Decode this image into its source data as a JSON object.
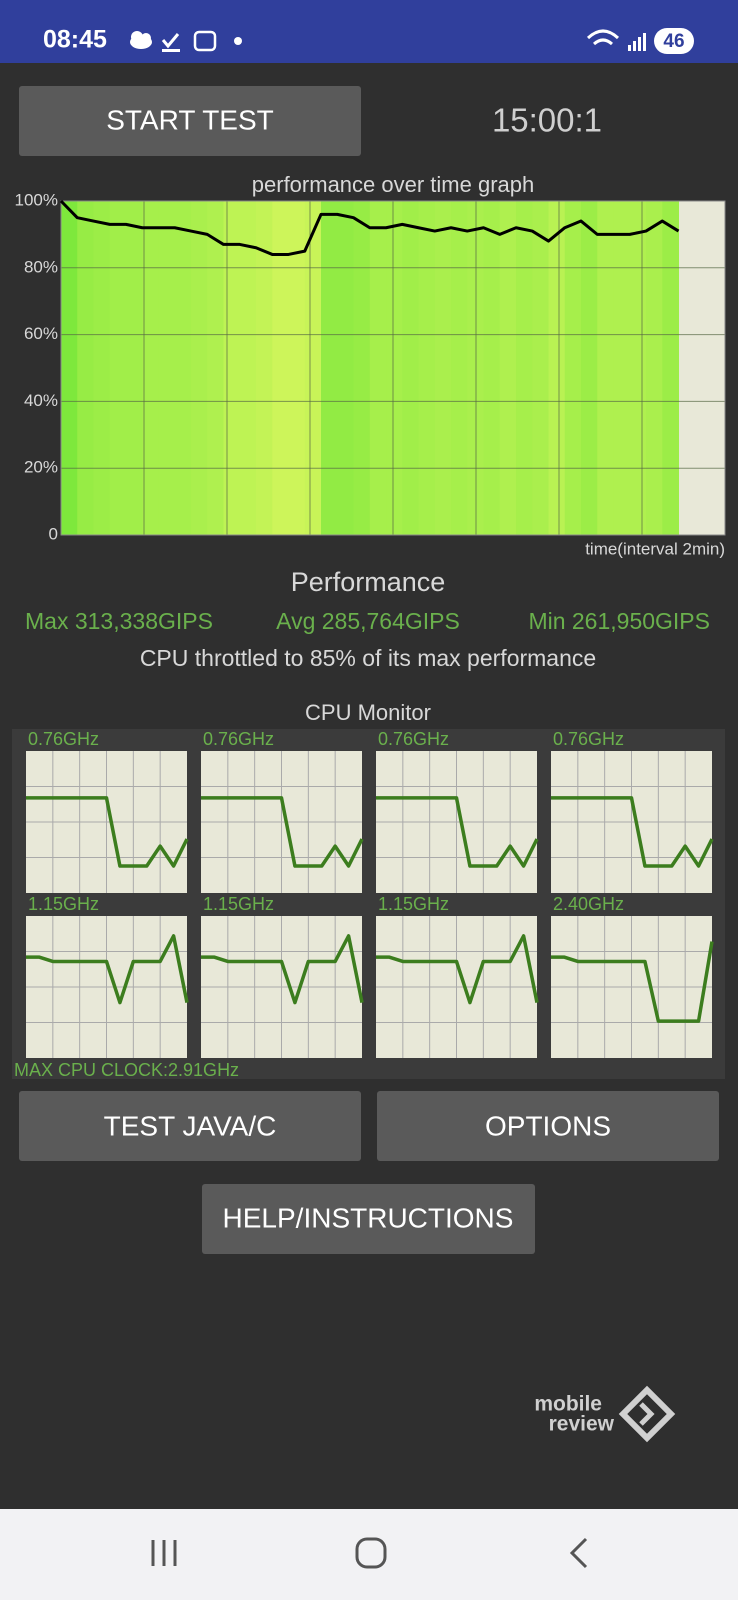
{
  "status_bar": {
    "time": "08:45",
    "battery": "46"
  },
  "buttons": {
    "start": "START TEST",
    "java": "TEST JAVA/C",
    "options": "OPTIONS",
    "help": "HELP/INSTRUCTIONS"
  },
  "timer": "15:00:1",
  "chart_data": {
    "type": "line",
    "title": "performance over time graph",
    "x_label": "time(interval 2min)",
    "ylim": [
      0,
      100
    ],
    "yticks": [
      {
        "value": 100,
        "label": "100%"
      },
      {
        "value": 80,
        "label": "80%"
      },
      {
        "value": 60,
        "label": "60%"
      },
      {
        "value": 40,
        "label": "40%"
      },
      {
        "value": 20,
        "label": "20%"
      },
      0
    ],
    "values": [
      100,
      95,
      94,
      93,
      93,
      92,
      92,
      92,
      91,
      90,
      87,
      87,
      86,
      84,
      84,
      85,
      96,
      96,
      95,
      92,
      92,
      93,
      92,
      91,
      92,
      91,
      92,
      90,
      92,
      91,
      88,
      92,
      94,
      90,
      90,
      90,
      91,
      94,
      91
    ],
    "color": "#000000",
    "background": "#e8e8d8",
    "grid": true
  },
  "performance": {
    "title": "Performance",
    "max": "Max 313,338GIPS",
    "avg": "Avg 285,764GIPS",
    "min": "Min 261,950GIPS",
    "summary": "CPU throttled to 85% of its max performance"
  },
  "cpu_monitor": {
    "title": "CPU Monitor",
    "max_clock": "MAX CPU CLOCK:2.91GHz",
    "ylim": [
      0,
      100
    ],
    "color": "#3c7d1e",
    "cores": [
      {
        "label": "0.76GHz",
        "values": [
          67,
          67,
          67,
          67,
          67,
          67,
          67,
          19,
          19,
          19,
          33,
          19,
          38
        ]
      },
      {
        "label": "0.76GHz",
        "values": [
          67,
          67,
          67,
          67,
          67,
          67,
          67,
          19,
          19,
          19,
          33,
          19,
          38
        ]
      },
      {
        "label": "0.76GHz",
        "values": [
          67,
          67,
          67,
          67,
          67,
          67,
          67,
          19,
          19,
          19,
          33,
          19,
          38
        ]
      },
      {
        "label": "0.76GHz",
        "values": [
          67,
          67,
          67,
          67,
          67,
          67,
          67,
          19,
          19,
          19,
          33,
          19,
          38
        ]
      },
      {
        "label": "1.15GHz",
        "values": [
          71,
          71,
          68,
          68,
          68,
          68,
          68,
          39,
          68,
          68,
          68,
          86,
          39
        ]
      },
      {
        "label": "1.15GHz",
        "values": [
          71,
          71,
          68,
          68,
          68,
          68,
          68,
          39,
          68,
          68,
          68,
          86,
          39
        ]
      },
      {
        "label": "1.15GHz",
        "values": [
          71,
          71,
          68,
          68,
          68,
          68,
          68,
          39,
          68,
          68,
          68,
          86,
          39
        ]
      },
      {
        "label": "2.40GHz",
        "values": [
          71,
          71,
          68,
          68,
          68,
          68,
          68,
          68,
          26,
          26,
          26,
          26,
          82
        ]
      }
    ]
  },
  "watermark": [
    "mobile",
    "review"
  ]
}
